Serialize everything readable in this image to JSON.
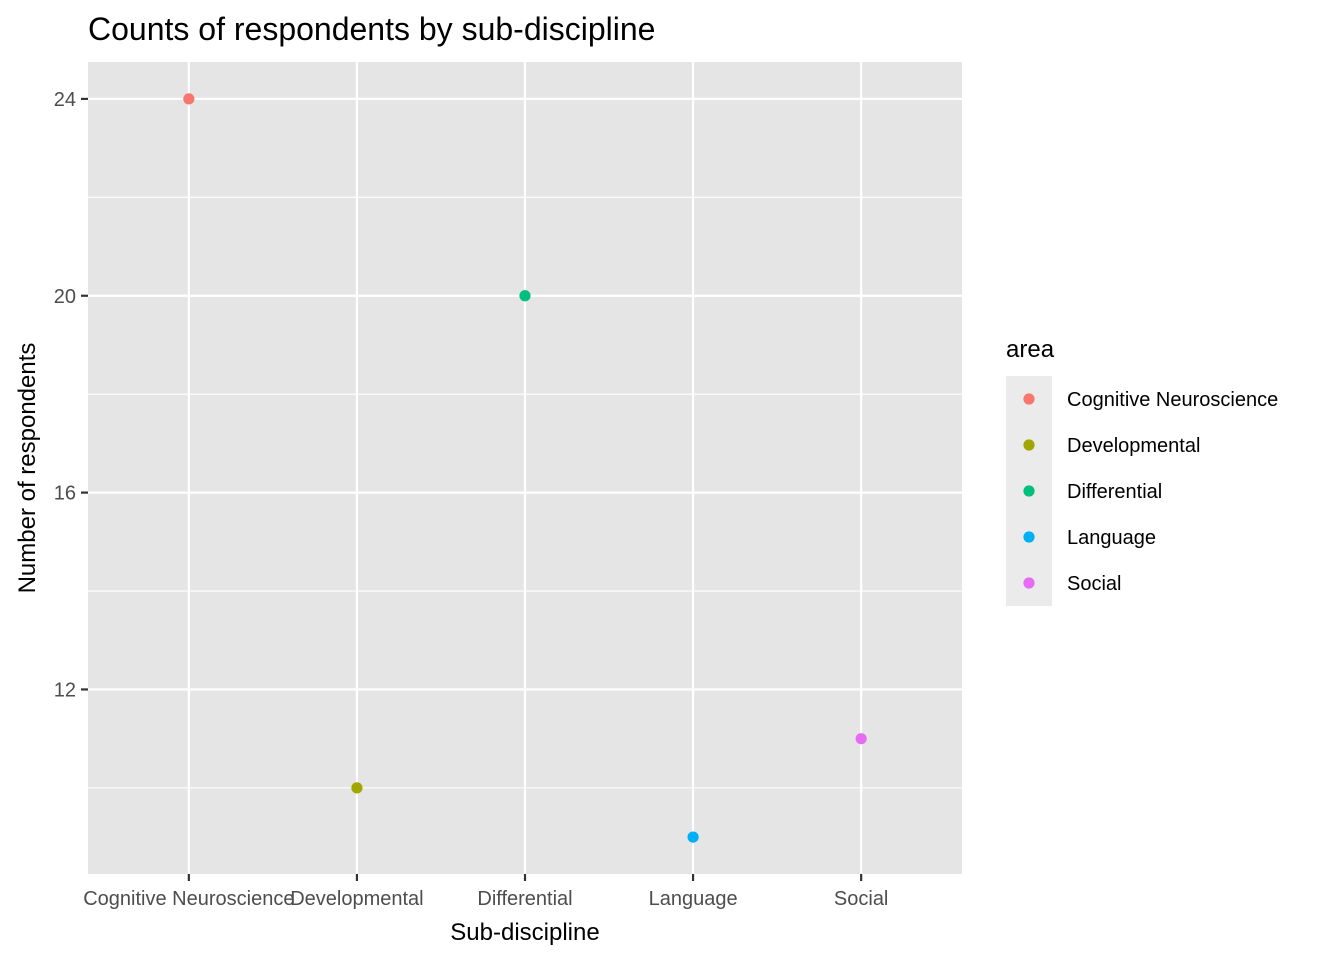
{
  "chart_data": {
    "type": "scatter",
    "title": "Counts of respondents by sub-discipline",
    "xlabel": "Sub-discipline",
    "ylabel": "Number of respondents",
    "categories": [
      "Cognitive Neuroscience",
      "Developmental",
      "Differential",
      "Language",
      "Social"
    ],
    "values": [
      24,
      10,
      20,
      9,
      11
    ],
    "colors": [
      "#F8766D",
      "#A3A500",
      "#00BF7D",
      "#00B0F6",
      "#E76BF3"
    ],
    "y_ticks": [
      12,
      16,
      20,
      24
    ],
    "ylim": [
      8.25,
      24.75
    ],
    "grid": true,
    "legend": {
      "title": "area",
      "position": "right",
      "entries": [
        "Cognitive Neuroscience",
        "Developmental",
        "Differential",
        "Language",
        "Social"
      ]
    },
    "panel_background": "#E5E5E5",
    "legend_key_background": "#EBEBEB"
  }
}
